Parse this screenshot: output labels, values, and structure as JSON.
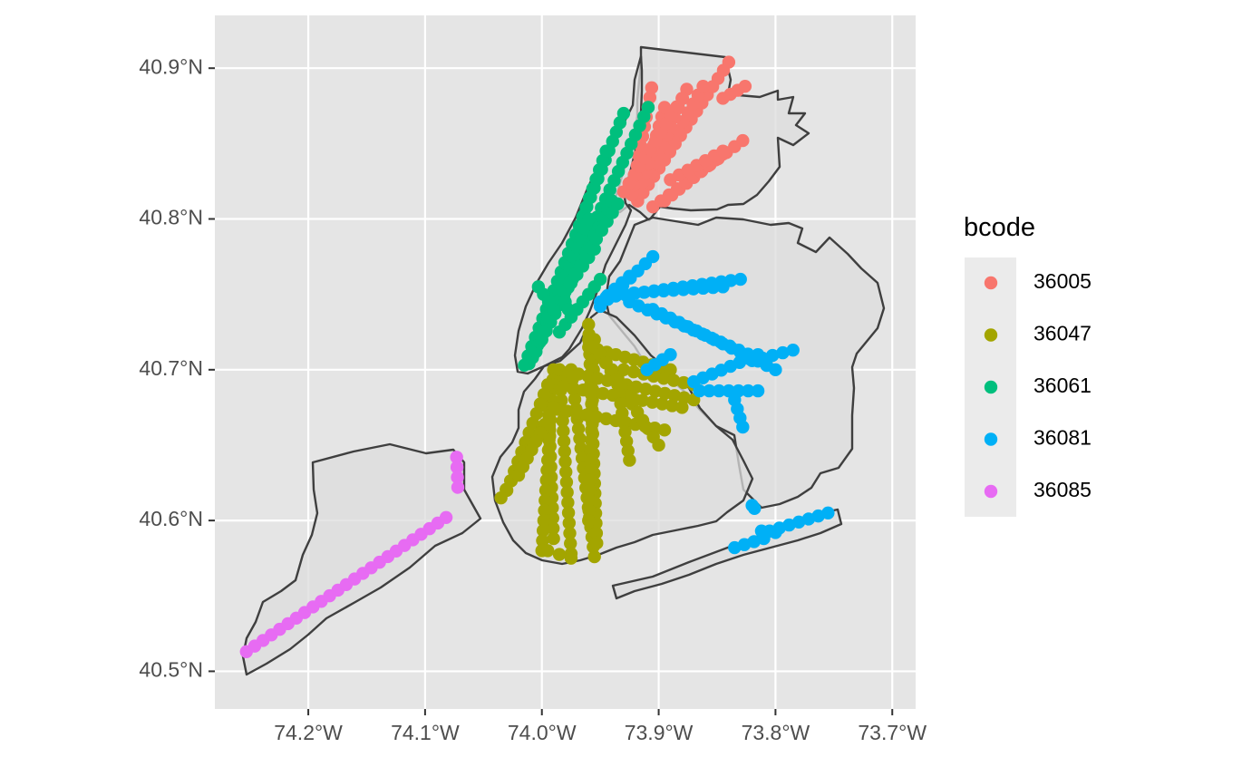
{
  "chart_data": {
    "type": "scatter",
    "title": "",
    "xlabel": "",
    "ylabel": "",
    "xlim": [
      -74.28,
      -73.68
    ],
    "ylim": [
      40.475,
      40.935
    ],
    "x_ticks": [
      {
        "value": -74.2,
        "label": "74.2°W"
      },
      {
        "value": -74.1,
        "label": "74.1°W"
      },
      {
        "value": -74.0,
        "label": "74.0°W"
      },
      {
        "value": -73.9,
        "label": "73.9°W"
      },
      {
        "value": -73.8,
        "label": "73.8°W"
      },
      {
        "value": -73.7,
        "label": "73.7°W"
      }
    ],
    "y_ticks": [
      {
        "value": 40.5,
        "label": "40.5°N"
      },
      {
        "value": 40.6,
        "label": "40.6°N"
      },
      {
        "value": 40.7,
        "label": "40.7°N"
      },
      {
        "value": 40.8,
        "label": "40.8°N"
      },
      {
        "value": 40.9,
        "label": "40.9°N"
      }
    ],
    "grid": true,
    "panel_background": "#e5e5e5",
    "legend": {
      "title": "bcode",
      "position": "right",
      "entries": [
        {
          "label": "36005",
          "color": "#f8766d"
        },
        {
          "label": "36047",
          "color": "#a3a500"
        },
        {
          "label": "36061",
          "color": "#00bf7d"
        },
        {
          "label": "36081",
          "color": "#00b0f6"
        },
        {
          "label": "36085",
          "color": "#e76bf3"
        }
      ]
    },
    "series": [
      {
        "name": "36005",
        "color": "#f8766d",
        "lines": [
          [
            [
              -73.918,
              40.812
            ],
            [
              -73.84,
              40.904
            ]
          ],
          [
            [
              -73.918,
              40.812
            ],
            [
              -73.862,
              40.888
            ]
          ],
          [
            [
              -73.918,
              40.812
            ],
            [
              -73.876,
              40.886
            ]
          ],
          [
            [
              -73.918,
              40.812
            ],
            [
              -73.895,
              40.874
            ]
          ],
          [
            [
              -73.923,
              40.816
            ],
            [
              -73.906,
              40.887
            ]
          ],
          [
            [
              -73.93,
              40.818
            ],
            [
              -73.88,
              40.88
            ]
          ],
          [
            [
              -73.905,
              40.808
            ],
            [
              -73.828,
              40.852
            ]
          ],
          [
            [
              -73.895,
              40.812
            ],
            [
              -73.845,
              40.843
            ]
          ],
          [
            [
              -73.89,
              40.826
            ],
            [
              -73.845,
              40.845
            ]
          ],
          [
            [
              -73.845,
              40.88
            ],
            [
              -73.826,
              40.888
            ]
          ]
        ]
      },
      {
        "name": "36047",
        "color": "#a3a500",
        "lines": [
          [
            [
              -73.985,
              40.7
            ],
            [
              -73.975,
              40.578
            ]
          ],
          [
            [
              -73.975,
              40.7
            ],
            [
              -73.955,
              40.576
            ]
          ],
          [
            [
              -73.995,
              40.69
            ],
            [
              -73.99,
              40.588
            ]
          ],
          [
            [
              -73.96,
              40.73
            ],
            [
              -73.953,
              40.585
            ]
          ],
          [
            [
              -73.955,
              40.72
            ],
            [
              -73.96,
              40.6
            ]
          ],
          [
            [
              -73.99,
              40.7
            ],
            [
              -74.0,
              40.58
            ]
          ],
          [
            [
              -73.985,
              40.7
            ],
            [
              -73.87,
              40.68
            ]
          ],
          [
            [
              -73.99,
              40.69
            ],
            [
              -73.88,
              40.675
            ]
          ],
          [
            [
              -73.995,
              40.675
            ],
            [
              -73.895,
              40.66
            ]
          ],
          [
            [
              -73.995,
              40.69
            ],
            [
              -74.03,
              40.62
            ]
          ],
          [
            [
              -74.0,
              40.66
            ],
            [
              -74.035,
              40.615
            ]
          ],
          [
            [
              -73.99,
              40.675
            ],
            [
              -74.02,
              40.63
            ]
          ],
          [
            [
              -73.96,
              40.715
            ],
            [
              -73.89,
              40.7
            ]
          ],
          [
            [
              -73.93,
              40.7
            ],
            [
              -73.87,
              40.69
            ]
          ],
          [
            [
              -73.96,
              40.72
            ],
            [
              -73.92,
              40.68
            ]
          ],
          [
            [
              -73.95,
              40.71
            ],
            [
              -73.9,
              40.65
            ]
          ],
          [
            [
              -73.995,
              40.58
            ],
            [
              -73.975,
              40.575
            ]
          ],
          [
            [
              -73.935,
              40.69
            ],
            [
              -73.925,
              40.64
            ]
          ]
        ]
      },
      {
        "name": "36061",
        "color": "#00bf7d",
        "lines": [
          [
            [
              -74.011,
              40.704
            ],
            [
              -73.909,
              40.874
            ]
          ],
          [
            [
              -74.015,
              40.703
            ],
            [
              -73.93,
              40.87
            ]
          ],
          [
            [
              -74.008,
              40.708
            ],
            [
              -73.945,
              40.845
            ]
          ],
          [
            [
              -74.005,
              40.712
            ],
            [
              -73.96,
              40.8
            ]
          ],
          [
            [
              -74.0,
              40.72
            ],
            [
              -73.94,
              40.812
            ]
          ],
          [
            [
              -73.995,
              40.735
            ],
            [
              -73.955,
              40.78
            ]
          ],
          [
            [
              -73.99,
              40.74
            ],
            [
              -73.935,
              40.81
            ]
          ],
          [
            [
              -73.985,
              40.725
            ],
            [
              -73.95,
              40.76
            ]
          ],
          [
            [
              -74.003,
              40.755
            ],
            [
              -73.99,
              40.74
            ]
          ],
          [
            [
              -73.98,
              40.745
            ],
            [
              -73.975,
              40.735
            ]
          ]
        ]
      },
      {
        "name": "36081",
        "color": "#00b0f6",
        "lines": [
          [
            [
              -73.95,
              40.742
            ],
            [
              -73.905,
              40.775
            ]
          ],
          [
            [
              -73.95,
              40.745
            ],
            [
              -73.925,
              40.762
            ]
          ],
          [
            [
              -73.945,
              40.748
            ],
            [
              -73.83,
              40.76
            ]
          ],
          [
            [
              -73.938,
              40.75
            ],
            [
              -73.845,
              40.755
            ]
          ],
          [
            [
              -73.925,
              40.745
            ],
            [
              -73.808,
              40.705
            ]
          ],
          [
            [
              -73.905,
              40.74
            ],
            [
              -73.8,
              40.7
            ]
          ],
          [
            [
              -73.87,
              40.692
            ],
            [
              -73.815,
              40.71
            ]
          ],
          [
            [
              -73.865,
              40.686
            ],
            [
              -73.815,
              40.686
            ]
          ],
          [
            [
              -73.91,
              40.7
            ],
            [
              -73.89,
              40.71
            ]
          ],
          [
            [
              -73.835,
              40.68
            ],
            [
              -73.828,
              40.662
            ]
          ],
          [
            [
              -73.82,
              40.706
            ],
            [
              -73.785,
              40.713
            ]
          ],
          [
            [
              -73.835,
              40.582
            ],
            [
              -73.81,
              40.588
            ]
          ],
          [
            [
              -73.805,
              40.593
            ],
            [
              -73.755,
              40.605
            ]
          ],
          [
            [
              -73.812,
              40.593
            ],
            [
              -73.8,
              40.592
            ]
          ],
          [
            [
              -73.82,
              40.61
            ],
            [
              -73.818,
              40.608
            ]
          ]
        ]
      },
      {
        "name": "36085",
        "color": "#e76bf3",
        "lines": [
          [
            [
              -74.253,
              40.513
            ],
            [
              -74.082,
              40.602
            ]
          ],
          [
            [
              -74.073,
              40.642
            ],
            [
              -74.072,
              40.622
            ]
          ]
        ]
      }
    ]
  }
}
